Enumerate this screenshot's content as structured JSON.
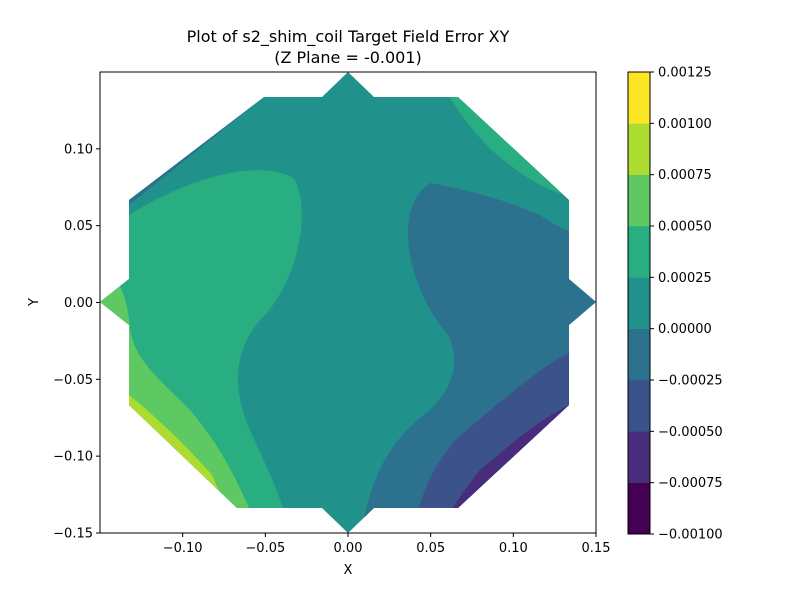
{
  "chart_data": {
    "type": "contour",
    "title": "Plot of s2_shim_coil Target Field Error XY",
    "subtitle": "(Z Plane = -0.001)",
    "xlabel": "X",
    "ylabel": "Y",
    "xlim": [
      -0.15,
      0.15
    ],
    "ylim": [
      -0.15,
      0.15
    ],
    "x_ticks": [
      -0.1,
      -0.05,
      0.0,
      0.05,
      0.1,
      0.15
    ],
    "x_tick_labels": [
      "−0.10",
      "−0.05",
      "0.00",
      "0.05",
      "0.10",
      "0.15"
    ],
    "y_ticks": [
      -0.15,
      -0.1,
      -0.05,
      0.0,
      0.05,
      0.1
    ],
    "y_tick_labels": [
      "−0.15",
      "−0.10",
      "−0.05",
      "0.00",
      "0.05",
      "0.10"
    ],
    "colorbar": {
      "levels": [
        -0.001,
        -0.00075,
        -0.0005,
        -0.00025,
        0.0,
        0.00025,
        0.0005,
        0.00075,
        0.001,
        0.00125
      ],
      "tick_labels": [
        "−0.00100",
        "−0.00075",
        "−0.00050",
        "−0.00025",
        "0.00000",
        "0.00025",
        "0.00050",
        "0.00075",
        "0.00100",
        "0.00125"
      ],
      "colors": [
        "#440154",
        "#472d7b",
        "#3b528b",
        "#2c728e",
        "#21918c",
        "#28ae80",
        "#5ec962",
        "#addc30",
        "#fde725"
      ]
    },
    "grid": false,
    "colormap": "viridis"
  }
}
